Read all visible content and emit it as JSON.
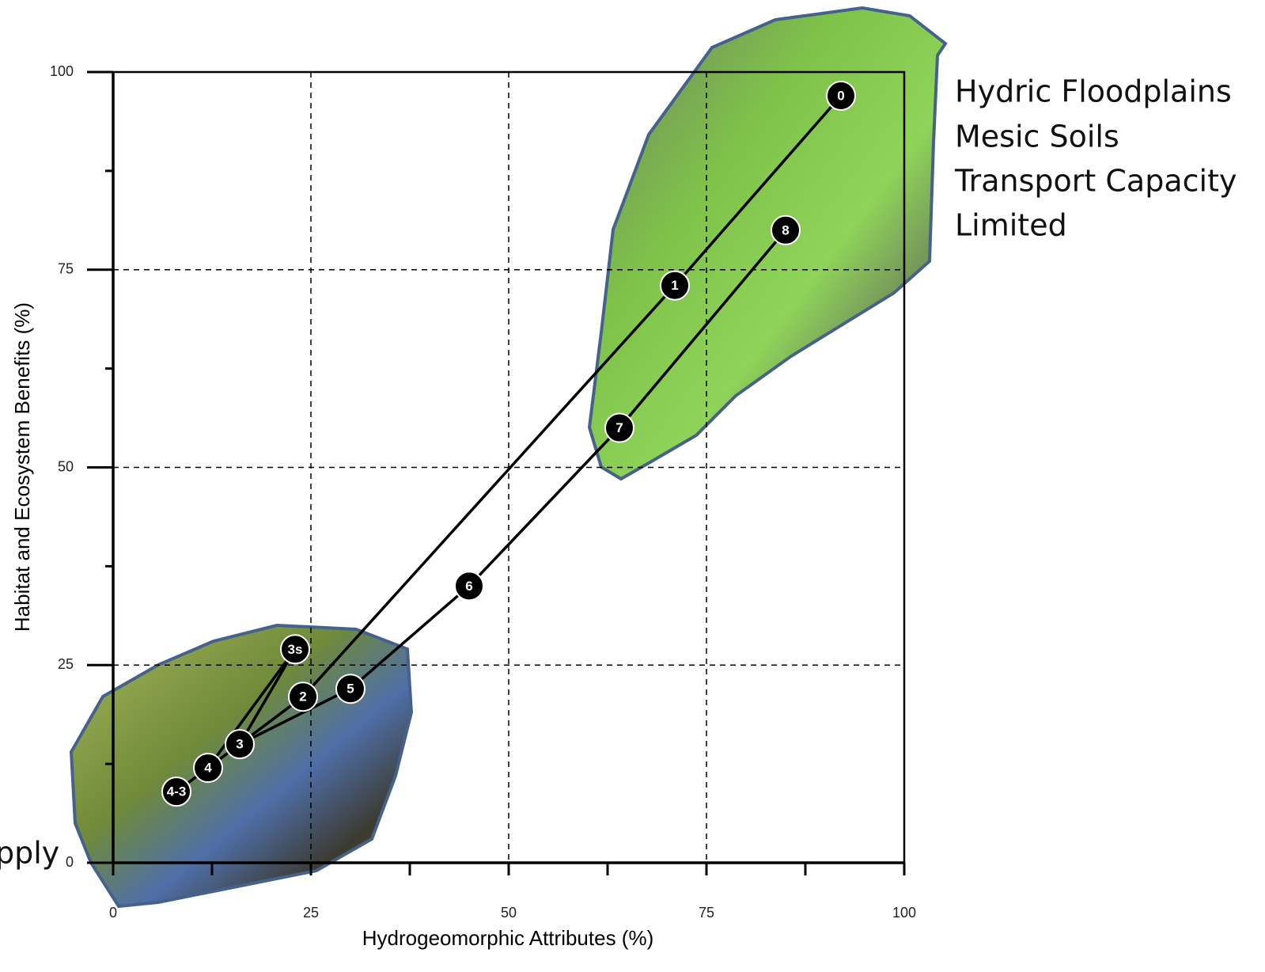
{
  "chart_data": {
    "type": "line",
    "x_label": "Hydrogeomorphic Attributes (%)",
    "y_label": "Habitat and Ecosystem Benefits (%)",
    "xlim": [
      0,
      100
    ],
    "ylim": [
      0,
      100
    ],
    "xticks": [
      0,
      25,
      50,
      75,
      100
    ],
    "yticks": [
      0,
      25,
      50,
      75,
      100
    ],
    "x_minor_ticks": [
      12.5,
      37.5,
      62.5,
      87.5
    ],
    "y_minor_ticks": [
      12.5,
      37.5,
      62.5,
      87.5
    ],
    "grid": true,
    "color": "#000000",
    "series": [
      {
        "x": [
          92,
          71,
          24,
          16,
          12,
          8
        ],
        "values": [
          97,
          73,
          21,
          15,
          12,
          9
        ],
        "point_labels": [
          "0",
          "1",
          "2",
          "3",
          "4",
          "4-3"
        ]
      },
      {
        "x": [
          85,
          64,
          45,
          30,
          16
        ],
        "values": [
          80,
          55,
          35,
          22,
          15
        ],
        "point_labels": [
          "8",
          "7",
          "6",
          "5",
          null
        ]
      },
      {
        "x": [
          16,
          23,
          12
        ],
        "values": [
          15,
          27,
          12
        ],
        "point_labels": [
          null,
          "3s",
          null
        ]
      }
    ],
    "annotations": [
      "Hydric Floodplains",
      "Mesic Soils",
      "Transport Capacity",
      "Limited",
      "pply"
    ]
  }
}
